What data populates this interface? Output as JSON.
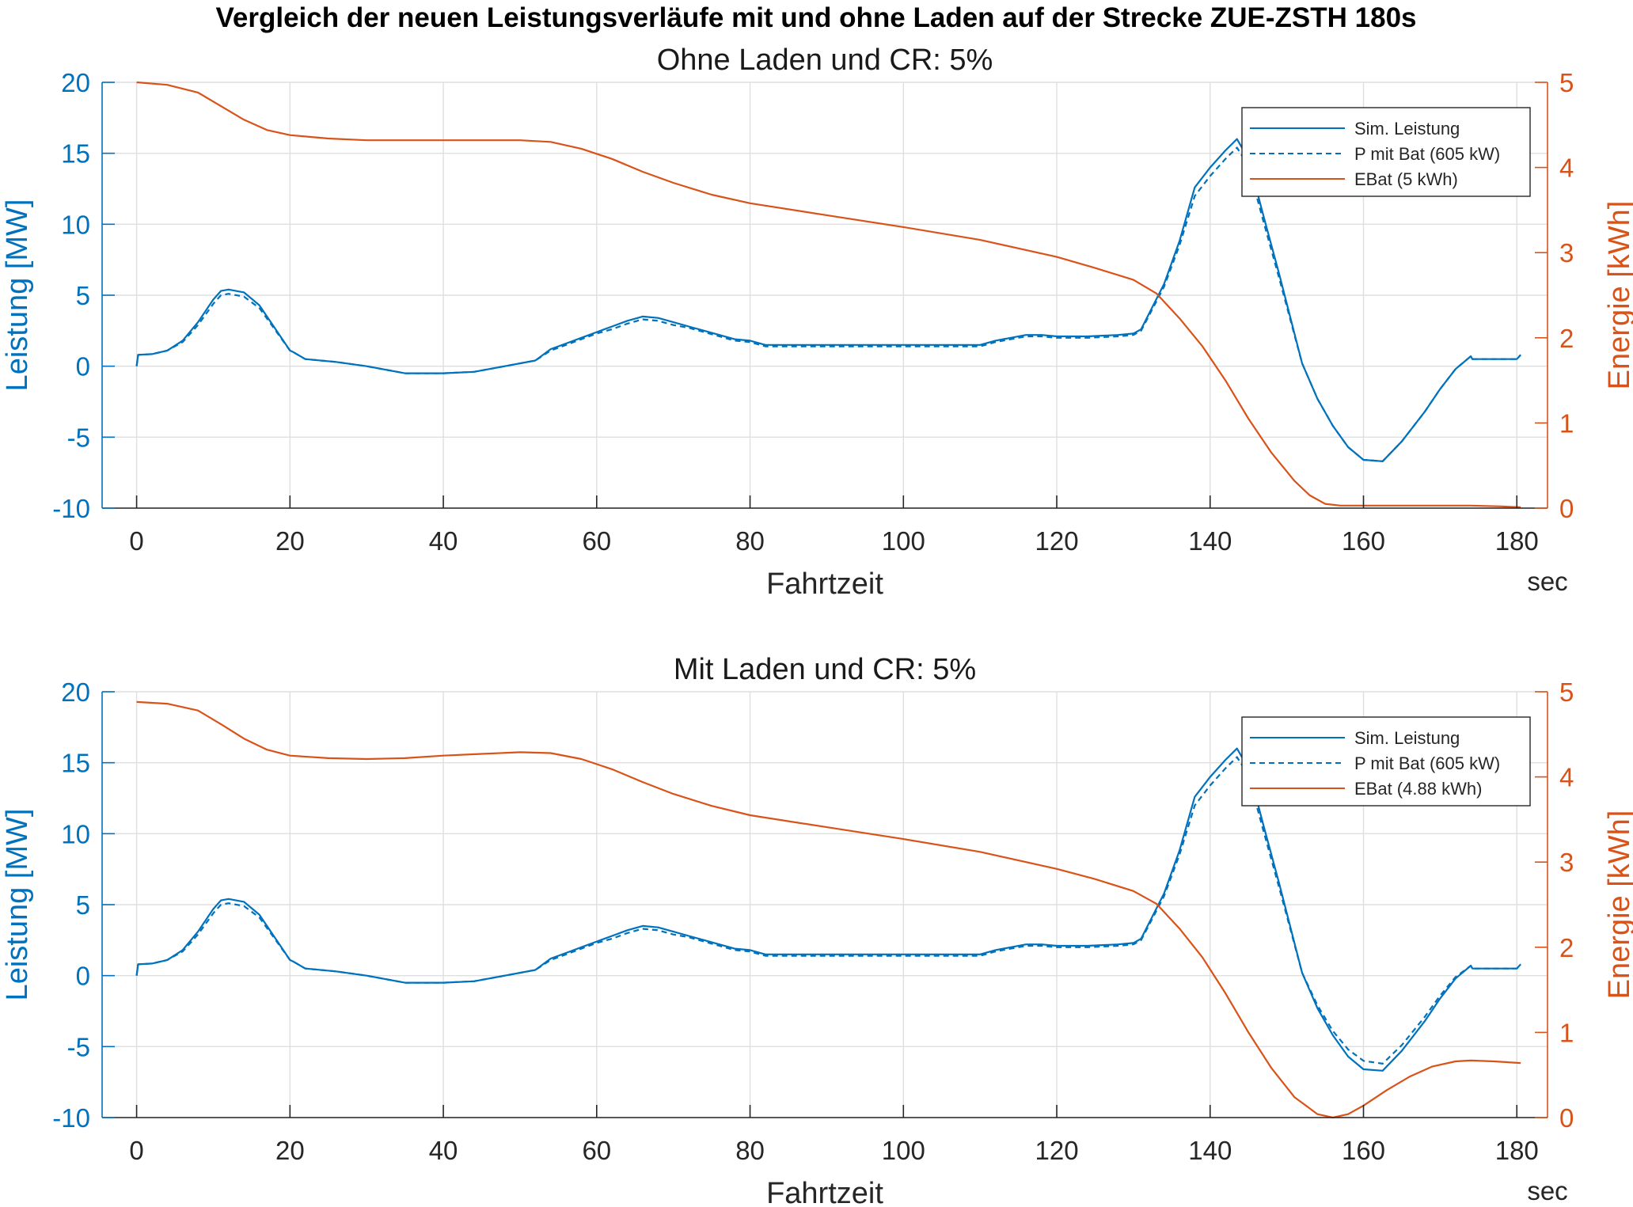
{
  "figure": {
    "suptitle": "Vergleich der neuen Leistungsverläufe mit und ohne Laden auf der Strecke ZUE-ZSTH 180s",
    "colors": {
      "power": "#0072BD",
      "energy": "#D95319",
      "grid": "#dfdfdf",
      "axis": "#262626"
    }
  },
  "chart_data": [
    {
      "type": "line",
      "title": "Ohne Laden und CR: 5%",
      "xlabel": "Fahrtzeit",
      "xunit": "sec",
      "ylabel_left": "Leistung [MW]",
      "ylabel_right": "Energie [kWh]",
      "xlim": [
        -4.5,
        184
      ],
      "ylim_left": [
        -10,
        20
      ],
      "ylim_right": [
        0,
        5
      ],
      "xticks": [
        0,
        20,
        40,
        60,
        80,
        100,
        120,
        140,
        160,
        180
      ],
      "yticks_left": [
        -10,
        -5,
        0,
        5,
        10,
        15,
        20
      ],
      "yticks_right": [
        0,
        1,
        2,
        3,
        4,
        5
      ],
      "grid": true,
      "legend_position": "top-right",
      "series": [
        {
          "name": "Sim. Leistung",
          "axis": "left",
          "style": "solid",
          "x": [
            0,
            0.2,
            2,
            4,
            6,
            8,
            10,
            11,
            12,
            14,
            16,
            18,
            20,
            20.4,
            22,
            26,
            30,
            35,
            40,
            44,
            48,
            52,
            54,
            56,
            58,
            60,
            62,
            64,
            66,
            68,
            70,
            72,
            74,
            76,
            78,
            80,
            82,
            84,
            88,
            100,
            108,
            110,
            112,
            114,
            116,
            118,
            120,
            124,
            128,
            130,
            131,
            134,
            136,
            138,
            140,
            142,
            143.5,
            145,
            147,
            149,
            151,
            152,
            154,
            156,
            158,
            160,
            162.5,
            165,
            168,
            170,
            172,
            174,
            174.2,
            180,
            180.5
          ],
          "y": [
            0,
            0.8,
            0.85,
            1.1,
            1.8,
            3.1,
            4.7,
            5.3,
            5.4,
            5.2,
            4.3,
            2.7,
            1.1,
            1.0,
            0.5,
            0.3,
            0,
            -0.5,
            -0.5,
            -0.4,
            0,
            0.4,
            1.2,
            1.6,
            2.0,
            2.4,
            2.8,
            3.2,
            3.5,
            3.4,
            3.1,
            2.8,
            2.5,
            2.2,
            1.9,
            1.8,
            1.5,
            1.5,
            1.5,
            1.5,
            1.5,
            1.5,
            1.8,
            2.0,
            2.2,
            2.2,
            2.1,
            2.1,
            2.2,
            2.3,
            2.6,
            5.8,
            8.8,
            12.6,
            14.0,
            15.2,
            16.0,
            14.6,
            10.5,
            6.5,
            2.3,
            0.2,
            -2.3,
            -4.2,
            -5.7,
            -6.6,
            -6.7,
            -5.3,
            -3.2,
            -1.6,
            -0.2,
            0.7,
            0.5,
            0.5,
            0.8
          ]
        },
        {
          "name": "P mit Bat (605 kW)",
          "axis": "left",
          "style": "dashed",
          "x": [
            0,
            0.2,
            2,
            4,
            6,
            8,
            10,
            11,
            12,
            14,
            16,
            18,
            20,
            20.4,
            22,
            26,
            30,
            35,
            40,
            44,
            48,
            52,
            54,
            56,
            58,
            60,
            62,
            64,
            66,
            68,
            70,
            72,
            74,
            76,
            78,
            80,
            82,
            84,
            88,
            100,
            108,
            110,
            112,
            114,
            116,
            118,
            120,
            124,
            128,
            130,
            131,
            134,
            136,
            138,
            140,
            142,
            143.5,
            145,
            147,
            149,
            151,
            152,
            154,
            156,
            158,
            160,
            162.5,
            165,
            168,
            170,
            172,
            174,
            174.2,
            180,
            180.5
          ],
          "y": [
            0,
            0.8,
            0.85,
            1.1,
            1.7,
            2.9,
            4.4,
            5.0,
            5.1,
            4.9,
            4.1,
            2.6,
            1.1,
            1.0,
            0.5,
            0.3,
            0,
            -0.5,
            -0.5,
            -0.4,
            0,
            0.4,
            1.1,
            1.5,
            1.9,
            2.3,
            2.6,
            3.0,
            3.3,
            3.2,
            2.9,
            2.7,
            2.4,
            2.1,
            1.8,
            1.7,
            1.4,
            1.4,
            1.4,
            1.4,
            1.4,
            1.4,
            1.7,
            1.9,
            2.1,
            2.1,
            2.0,
            2.0,
            2.1,
            2.2,
            2.5,
            5.6,
            8.5,
            12.0,
            13.4,
            14.6,
            15.4,
            14.1,
            10.1,
            6.2,
            2.2,
            0.2,
            -2.3,
            -4.2,
            -5.7,
            -6.6,
            -6.7,
            -5.3,
            -3.2,
            -1.6,
            -0.2,
            0.7,
            0.5,
            0.5,
            0.8
          ]
        },
        {
          "name": "EBat (5 kWh)",
          "axis": "right",
          "style": "solid",
          "x": [
            0,
            4,
            8,
            11,
            14,
            17,
            20,
            25,
            30,
            40,
            50,
            54,
            58,
            62,
            66,
            70,
            75,
            80,
            90,
            100,
            110,
            120,
            125,
            130,
            133,
            136,
            139,
            142,
            145,
            148,
            151,
            153,
            155,
            157,
            170,
            174,
            178,
            180.5
          ],
          "y": [
            5.0,
            4.97,
            4.88,
            4.72,
            4.56,
            4.44,
            4.38,
            4.34,
            4.32,
            4.32,
            4.32,
            4.3,
            4.22,
            4.1,
            3.95,
            3.82,
            3.68,
            3.58,
            3.44,
            3.3,
            3.15,
            2.95,
            2.82,
            2.68,
            2.52,
            2.23,
            1.9,
            1.5,
            1.05,
            0.65,
            0.32,
            0.15,
            0.05,
            0.03,
            0.03,
            0.03,
            0.02,
            0.01
          ]
        }
      ]
    },
    {
      "type": "line",
      "title": "Mit Laden und CR: 5%",
      "xlabel": "Fahrtzeit",
      "xunit": "sec",
      "ylabel_left": "Leistung [MW]",
      "ylabel_right": "Energie [kWh]",
      "xlim": [
        -4.5,
        184
      ],
      "ylim_left": [
        -10,
        20
      ],
      "ylim_right": [
        0,
        5
      ],
      "xticks": [
        0,
        20,
        40,
        60,
        80,
        100,
        120,
        140,
        160,
        180
      ],
      "yticks_left": [
        -10,
        -5,
        0,
        5,
        10,
        15,
        20
      ],
      "yticks_right": [
        0,
        1,
        2,
        3,
        4,
        5
      ],
      "grid": true,
      "legend_position": "top-right",
      "series": [
        {
          "name": "Sim. Leistung",
          "axis": "left",
          "style": "solid",
          "x": [
            0,
            0.2,
            2,
            4,
            6,
            8,
            10,
            11,
            12,
            14,
            16,
            18,
            20,
            20.4,
            22,
            26,
            30,
            35,
            40,
            44,
            48,
            52,
            54,
            56,
            58,
            60,
            62,
            64,
            66,
            68,
            70,
            72,
            74,
            76,
            78,
            80,
            82,
            84,
            88,
            100,
            108,
            110,
            112,
            114,
            116,
            118,
            120,
            124,
            128,
            130,
            131,
            134,
            136,
            138,
            140,
            142,
            143.5,
            145,
            147,
            149,
            151,
            152,
            154,
            156,
            158,
            160,
            162.5,
            165,
            168,
            170,
            172,
            174,
            174.2,
            180,
            180.5
          ],
          "y": [
            0,
            0.8,
            0.85,
            1.1,
            1.8,
            3.1,
            4.7,
            5.3,
            5.4,
            5.2,
            4.3,
            2.7,
            1.1,
            1.0,
            0.5,
            0.3,
            0,
            -0.5,
            -0.5,
            -0.4,
            0,
            0.4,
            1.2,
            1.6,
            2.0,
            2.4,
            2.8,
            3.2,
            3.5,
            3.4,
            3.1,
            2.8,
            2.5,
            2.2,
            1.9,
            1.8,
            1.5,
            1.5,
            1.5,
            1.5,
            1.5,
            1.5,
            1.8,
            2.0,
            2.2,
            2.2,
            2.1,
            2.1,
            2.2,
            2.3,
            2.6,
            5.8,
            8.8,
            12.6,
            14.0,
            15.2,
            16.0,
            14.6,
            10.5,
            6.5,
            2.3,
            0.2,
            -2.3,
            -4.2,
            -5.7,
            -6.6,
            -6.7,
            -5.3,
            -3.2,
            -1.6,
            -0.2,
            0.7,
            0.5,
            0.5,
            0.8
          ]
        },
        {
          "name": "P mit Bat (605 kW)",
          "axis": "left",
          "style": "dashed",
          "x": [
            0,
            0.2,
            2,
            4,
            6,
            8,
            10,
            11,
            12,
            14,
            16,
            18,
            20,
            20.4,
            22,
            26,
            30,
            35,
            40,
            44,
            48,
            52,
            54,
            56,
            58,
            60,
            62,
            64,
            66,
            68,
            70,
            72,
            74,
            76,
            78,
            80,
            82,
            84,
            88,
            100,
            108,
            110,
            112,
            114,
            116,
            118,
            120,
            124,
            128,
            130,
            131,
            134,
            136,
            138,
            140,
            142,
            143.5,
            145,
            147,
            149,
            151,
            152,
            154,
            156,
            158,
            160,
            162.5,
            165,
            168,
            170,
            172,
            174,
            174.2,
            180,
            180.5
          ],
          "y": [
            0,
            0.8,
            0.85,
            1.1,
            1.7,
            2.9,
            4.4,
            5.0,
            5.1,
            4.9,
            4.1,
            2.6,
            1.1,
            1.0,
            0.5,
            0.3,
            0,
            -0.5,
            -0.5,
            -0.4,
            0,
            0.4,
            1.1,
            1.5,
            1.9,
            2.3,
            2.6,
            3.0,
            3.3,
            3.2,
            2.9,
            2.7,
            2.4,
            2.1,
            1.8,
            1.7,
            1.4,
            1.4,
            1.4,
            1.4,
            1.4,
            1.4,
            1.7,
            1.9,
            2.1,
            2.1,
            2.0,
            2.0,
            2.1,
            2.2,
            2.5,
            5.6,
            8.5,
            12.0,
            13.4,
            14.6,
            15.4,
            14.1,
            10.1,
            6.2,
            2.2,
            0.2,
            -2.1,
            -3.9,
            -5.2,
            -6.0,
            -6.2,
            -4.9,
            -2.9,
            -1.4,
            -0.1,
            0.7,
            0.5,
            0.5,
            0.8
          ]
        },
        {
          "name": "EBat (4.88 kWh)",
          "axis": "right",
          "style": "solid",
          "x": [
            0,
            4,
            8,
            11,
            14,
            17,
            20,
            25,
            30,
            35,
            40,
            45,
            50,
            54,
            58,
            62,
            66,
            70,
            75,
            80,
            90,
            100,
            110,
            120,
            125,
            130,
            133,
            136,
            139,
            142,
            145,
            148,
            151,
            154,
            156,
            158,
            160,
            163,
            166,
            169,
            172,
            174,
            177,
            180.5
          ],
          "y": [
            4.88,
            4.86,
            4.78,
            4.62,
            4.45,
            4.32,
            4.25,
            4.22,
            4.21,
            4.22,
            4.25,
            4.27,
            4.29,
            4.28,
            4.21,
            4.09,
            3.94,
            3.8,
            3.66,
            3.55,
            3.41,
            3.27,
            3.12,
            2.92,
            2.8,
            2.66,
            2.51,
            2.22,
            1.88,
            1.46,
            1.0,
            0.58,
            0.24,
            0.04,
            0.0,
            0.04,
            0.14,
            0.32,
            0.48,
            0.6,
            0.66,
            0.67,
            0.66,
            0.64
          ]
        }
      ]
    }
  ]
}
